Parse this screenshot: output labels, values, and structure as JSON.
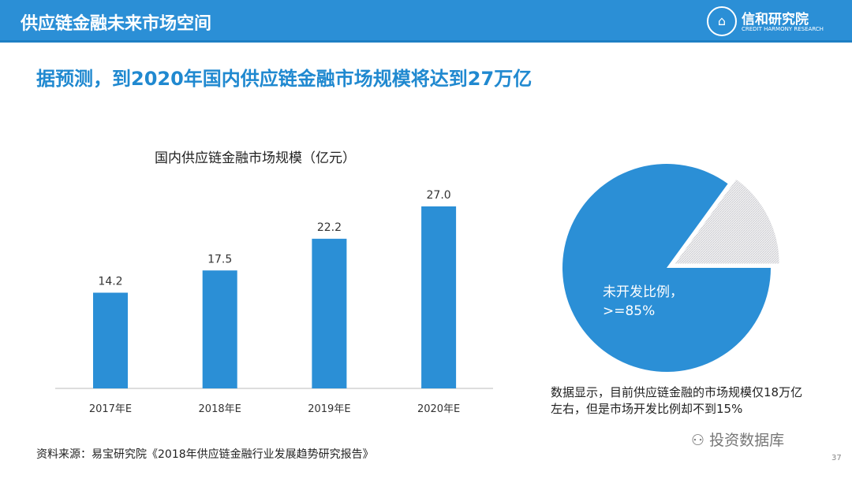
{
  "header": {
    "title": "供应链金融未来市场空间",
    "logo_name": "信和研究院",
    "logo_en": "CREDIT HARMONY RESEARCH",
    "accent": "#2b8fd6"
  },
  "headline": "据预测，到2020年国内供应链金融市场规模将达到27万亿",
  "chart_data": [
    {
      "type": "bar",
      "title": "国内供应链金融市场规模（亿元）",
      "categories": [
        "2017年E",
        "2018年E",
        "2019年E",
        "2020年E"
      ],
      "values": [
        14.2,
        17.5,
        22.2,
        27.0
      ],
      "value_labels": [
        "14.2",
        "17.5",
        "22.2",
        "27.0"
      ],
      "ylim": [
        0,
        27.0
      ],
      "color": "#2b8fd6",
      "grid": false
    },
    {
      "type": "pie",
      "slices": [
        {
          "label": "未开发比例，\n>=85%",
          "value": 85,
          "color": "#2b8fd6"
        },
        {
          "value": 15,
          "color": "#e4e4e8",
          "exploded": true
        }
      ]
    }
  ],
  "pie_label_line1": "未开发比例，",
  "pie_label_line2": ">=85%",
  "note": "数据显示，目前供应链金融的市场规模仅18万亿左右，但是市场开发比例却不到15%",
  "source": "资料来源：易宝研究院《2018年供应链金融行业发展趋势研究报告》",
  "watermark": "投资数据库",
  "page_number": "37"
}
